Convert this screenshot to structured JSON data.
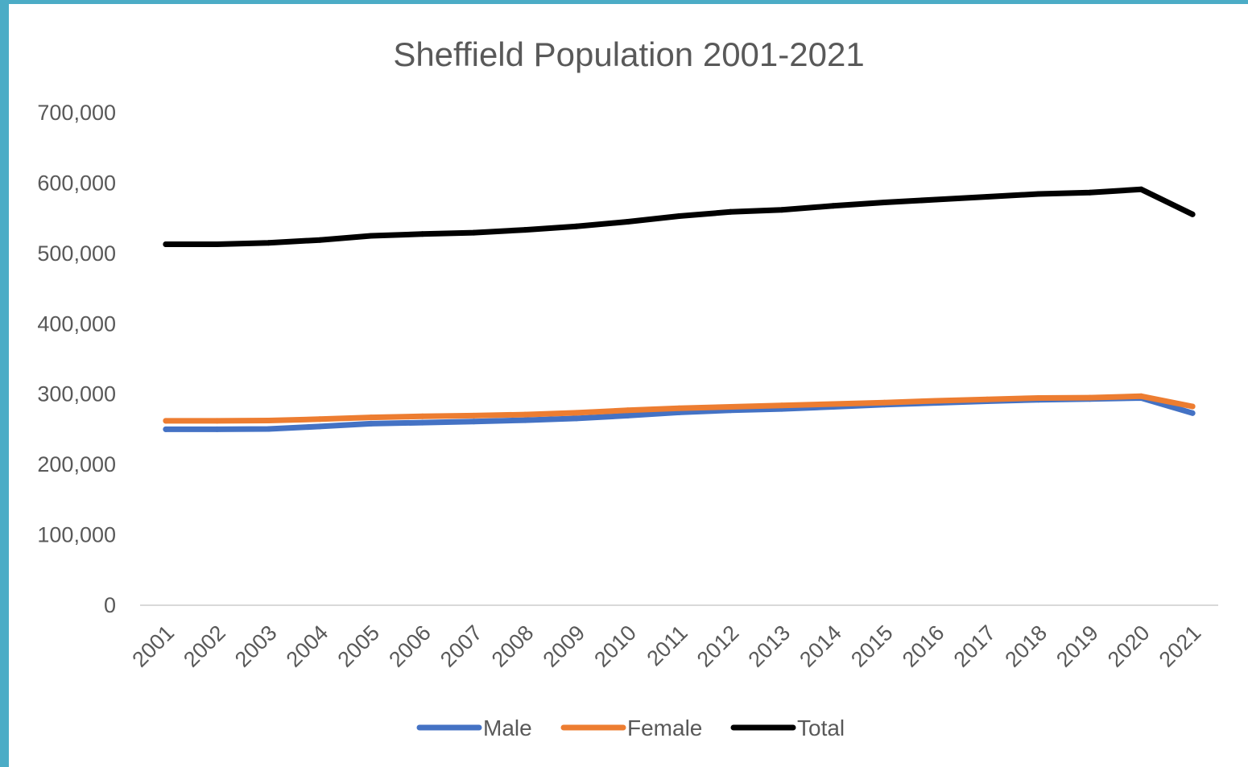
{
  "chart_data": {
    "type": "line",
    "title": "Sheffield Population 2001-2021",
    "xlabel": "",
    "ylabel": "",
    "categories": [
      "2001",
      "2002",
      "2003",
      "2004",
      "2005",
      "2006",
      "2007",
      "2008",
      "2009",
      "2010",
      "2011",
      "2012",
      "2013",
      "2014",
      "2015",
      "2016",
      "2017",
      "2018",
      "2019",
      "2020",
      "2021"
    ],
    "ylim": [
      0,
      700000
    ],
    "yticks": [
      0,
      100000,
      200000,
      300000,
      400000,
      500000,
      600000,
      700000
    ],
    "ytick_labels": [
      "0",
      "100,000",
      "200,000",
      "300,000",
      "400,000",
      "500,000",
      "600,000",
      "700,000"
    ],
    "grid": false,
    "legend_position": "bottom",
    "series": [
      {
        "name": "Male",
        "color": "#4472c4",
        "values": [
          250000,
          250000,
          250500,
          254000,
          258000,
          259500,
          261000,
          263000,
          265500,
          269500,
          274000,
          277000,
          279000,
          282000,
          285000,
          287500,
          290000,
          292000,
          293000,
          294500,
          273000
        ]
      },
      {
        "name": "Female",
        "color": "#ed7d31",
        "values": [
          262000,
          262000,
          262500,
          264500,
          267000,
          268500,
          269500,
          271000,
          273500,
          277000,
          280000,
          282000,
          284000,
          286000,
          288000,
          290500,
          292500,
          294500,
          295000,
          297000,
          282500
        ]
      },
      {
        "name": "Total",
        "color": "#000000",
        "values": [
          513000,
          513000,
          515000,
          519000,
          525000,
          527500,
          529500,
          533500,
          538500,
          545000,
          553000,
          559000,
          562000,
          567500,
          572500,
          576500,
          580500,
          584500,
          586500,
          591000,
          555500
        ]
      }
    ]
  }
}
